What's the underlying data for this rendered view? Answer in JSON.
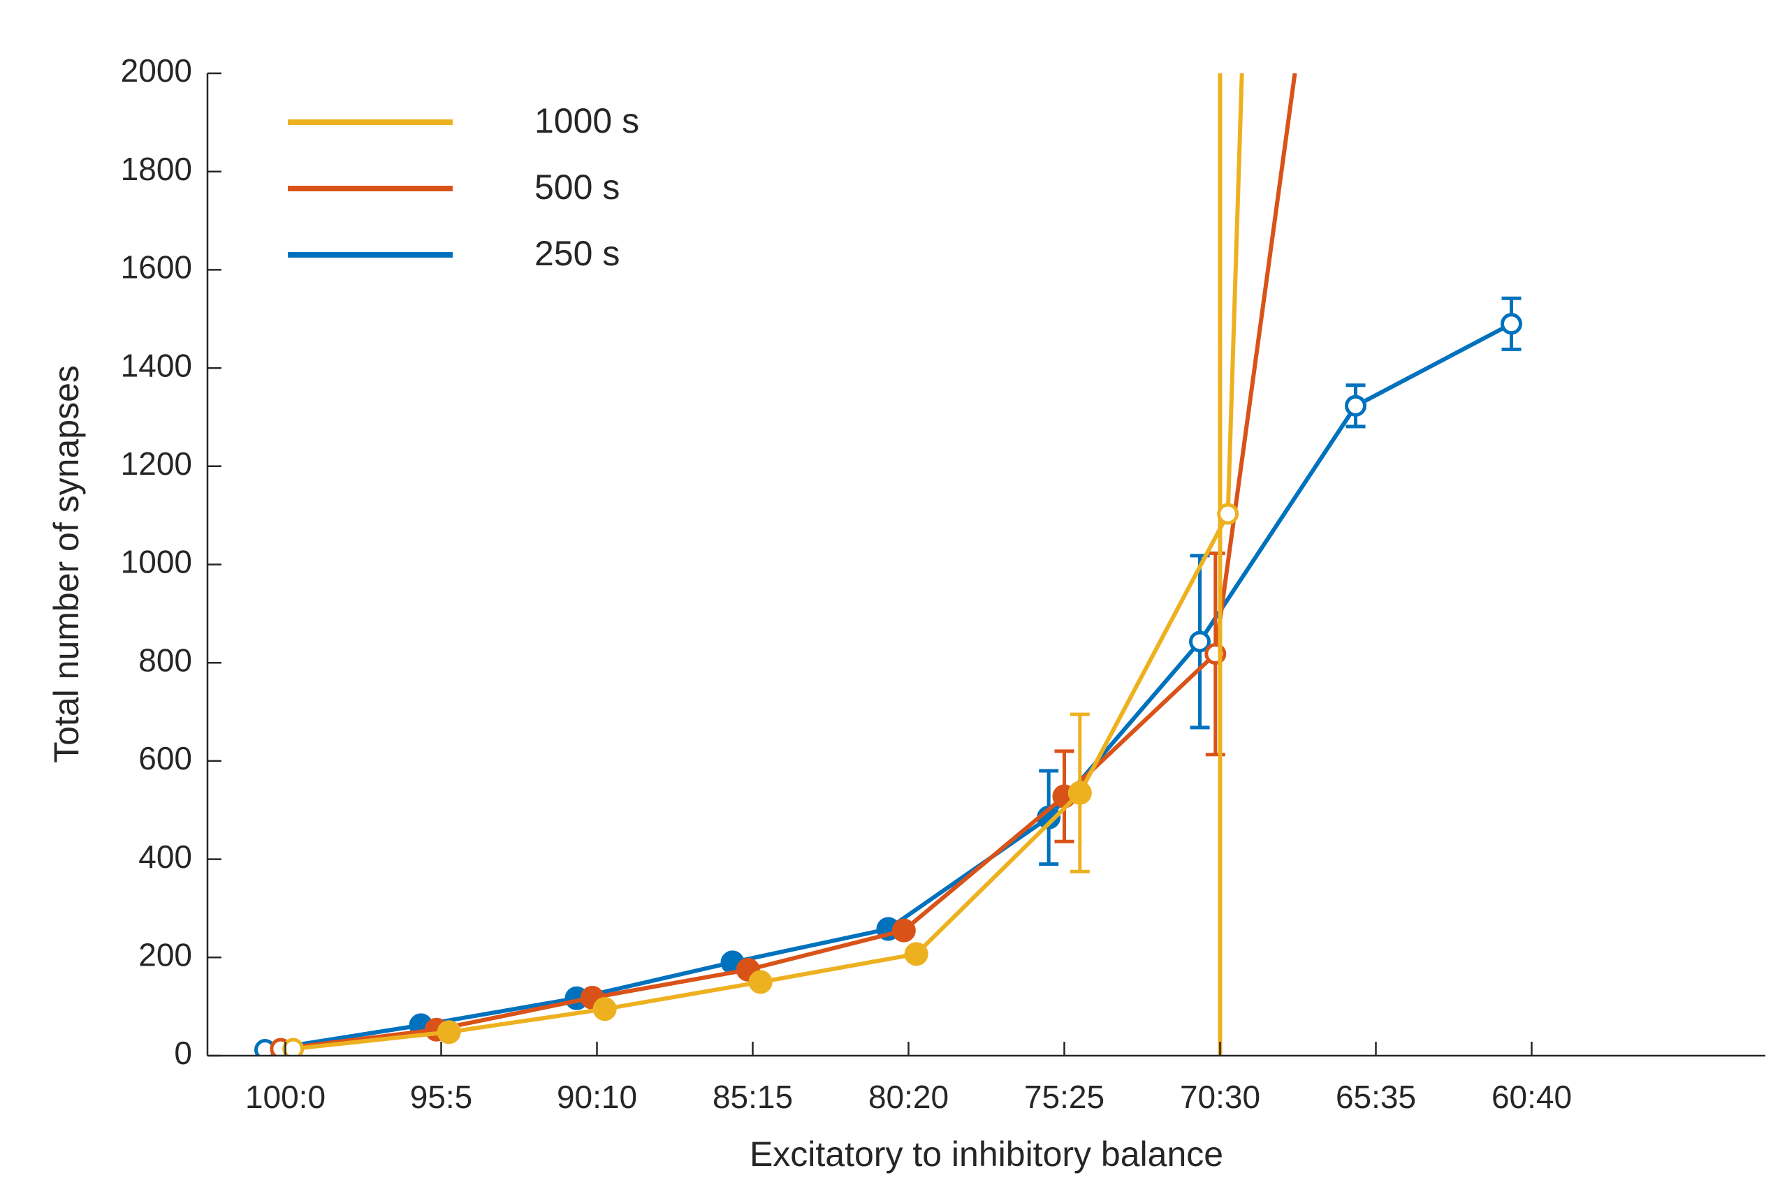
{
  "chart_data": {
    "type": "line",
    "title": "",
    "xlabel": "Excitatory to inhibitory balance",
    "ylabel": "Total number of synapses",
    "categories": [
      "100:0",
      "95:5",
      "90:10",
      "85:15",
      "80:20",
      "75:25",
      "70:30",
      "65:35",
      "60:40"
    ],
    "xlim": [
      -0.5,
      9.5
    ],
    "ylim": [
      0,
      2000
    ],
    "yticks": [
      0,
      200,
      400,
      600,
      800,
      1000,
      1200,
      1400,
      1600,
      1800,
      2000
    ],
    "grid": false,
    "legend_position": "top-left",
    "series": [
      {
        "name": "1000 s",
        "color": "#EDB120",
        "x": [
          0.05,
          1.05,
          2.05,
          3.05,
          4.05,
          5.1,
          6.05
        ],
        "values": [
          14,
          48,
          95,
          150,
          207,
          535,
          1103
        ],
        "error": [
          0,
          0,
          0,
          0,
          0,
          160,
          0
        ],
        "open_markers": [
          0,
          6
        ],
        "extra_lines": [
          {
            "x": [
              6.0,
              6.0
            ],
            "y": [
              0,
              2000
            ]
          },
          {
            "x": [
              6.05,
              6.14
            ],
            "y": [
              1103,
              2000
            ]
          }
        ]
      },
      {
        "name": "500 s",
        "color": "#D95319",
        "x": [
          -0.03,
          0.97,
          1.97,
          2.97,
          3.97,
          5.0,
          5.97
        ],
        "values": [
          14,
          53,
          118,
          175,
          255,
          528,
          818
        ],
        "error": [
          0,
          0,
          0,
          0,
          0,
          92,
          205
        ],
        "open_markers": [
          0,
          6
        ],
        "extra_lines": [
          {
            "x": [
              5.97,
              6.48
            ],
            "y": [
              818,
              2000
            ]
          }
        ]
      },
      {
        "name": "250 s",
        "color": "#0072BD",
        "x": [
          -0.13,
          0.87,
          1.87,
          2.87,
          3.87,
          4.9,
          5.87,
          6.87,
          7.87
        ],
        "values": [
          12,
          62,
          117,
          190,
          258,
          485,
          843,
          1323,
          1490
        ],
        "error": [
          0,
          0,
          0,
          0,
          0,
          95,
          175,
          42,
          52
        ],
        "open_markers": [
          0,
          6,
          7,
          8
        ],
        "extra_lines": []
      }
    ]
  }
}
